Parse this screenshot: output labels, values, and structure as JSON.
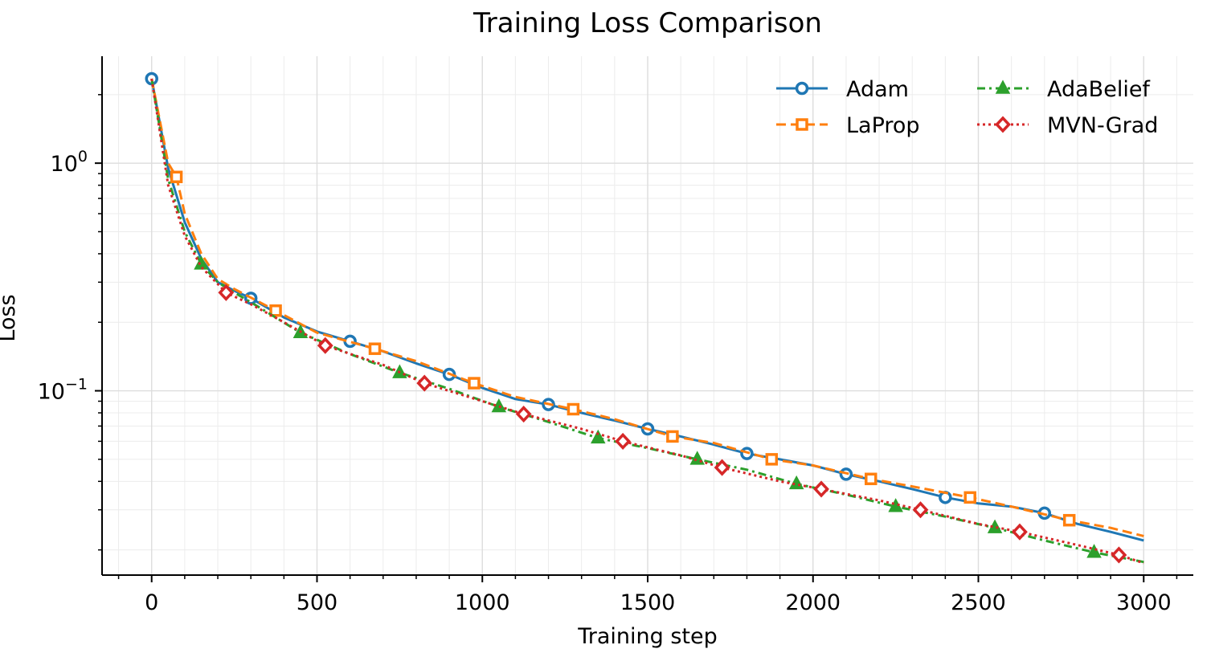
{
  "chart_data": {
    "type": "line",
    "title": "Training Loss Comparison",
    "xlabel": "Training step",
    "ylabel": "Loss",
    "yscale": "log",
    "xlim": [
      -150,
      3150
    ],
    "ylim": [
      0.0155,
      2.95
    ],
    "xticks": [
      0,
      500,
      1000,
      1500,
      2000,
      2500,
      3000
    ],
    "xtick_labels": [
      "0",
      "500",
      "1000",
      "1500",
      "2000",
      "2500",
      "3000"
    ],
    "yticks": [
      {
        "value": 1,
        "base": "10",
        "exponent": "0"
      },
      {
        "value": 0.1,
        "base": "10",
        "exponent": "−1"
      }
    ],
    "grid": true,
    "legend_location": "top-right",
    "legend_columns": 2,
    "series": [
      {
        "name": "Adam",
        "color": "#1f77b4",
        "line_style": "solid",
        "marker": "circle",
        "x": [
          0,
          50,
          100,
          150,
          200,
          250,
          300,
          400,
          500,
          600,
          700,
          800,
          900,
          1000,
          1100,
          1200,
          1300,
          1400,
          1500,
          1600,
          1700,
          1800,
          1900,
          2000,
          2100,
          2200,
          2300,
          2400,
          2500,
          2600,
          2700,
          2800,
          2900,
          3000
        ],
        "values": [
          2.35,
          0.95,
          0.55,
          0.38,
          0.3,
          0.275,
          0.255,
          0.21,
          0.182,
          0.165,
          0.149,
          0.132,
          0.118,
          0.103,
          0.092,
          0.087,
          0.08,
          0.074,
          0.068,
          0.063,
          0.058,
          0.053,
          0.05,
          0.047,
          0.043,
          0.04,
          0.037,
          0.034,
          0.032,
          0.031,
          0.029,
          0.026,
          0.024,
          0.022
        ],
        "marker_x": [
          0,
          300,
          600,
          900,
          1200,
          1500,
          1800,
          2100,
          2400,
          2700
        ]
      },
      {
        "name": "LaProp",
        "color": "#ff7f0e",
        "line_style": "dashed",
        "marker": "square",
        "x": [
          0,
          50,
          75,
          100,
          150,
          200,
          250,
          375,
          500,
          675,
          800,
          975,
          1100,
          1275,
          1400,
          1575,
          1700,
          1875,
          2000,
          2175,
          2300,
          2475,
          2600,
          2775,
          2900,
          3000
        ],
        "values": [
          2.35,
          1.0,
          0.87,
          0.6,
          0.4,
          0.31,
          0.28,
          0.225,
          0.18,
          0.153,
          0.135,
          0.108,
          0.094,
          0.083,
          0.075,
          0.063,
          0.059,
          0.05,
          0.047,
          0.041,
          0.038,
          0.034,
          0.031,
          0.027,
          0.025,
          0.023
        ],
        "marker_x": [
          75,
          375,
          675,
          975,
          1275,
          1575,
          1875,
          2175,
          2475,
          2775
        ]
      },
      {
        "name": "AdaBelief",
        "color": "#2ca02c",
        "line_style": "dashdot",
        "marker": "triangle",
        "x": [
          0,
          50,
          100,
          150,
          200,
          250,
          300,
          450,
          600,
          750,
          900,
          1050,
          1200,
          1350,
          1500,
          1650,
          1800,
          1950,
          2100,
          2250,
          2400,
          2550,
          2700,
          2850,
          3000
        ],
        "values": [
          2.35,
          0.85,
          0.5,
          0.36,
          0.3,
          0.27,
          0.245,
          0.18,
          0.145,
          0.12,
          0.102,
          0.085,
          0.073,
          0.062,
          0.056,
          0.05,
          0.045,
          0.039,
          0.035,
          0.031,
          0.028,
          0.025,
          0.022,
          0.0195,
          0.0177
        ],
        "marker_x": [
          150,
          450,
          750,
          1050,
          1350,
          1650,
          1950,
          2250,
          2550,
          2850
        ]
      },
      {
        "name": "MVN-Grad",
        "color": "#d62728",
        "line_style": "dotted",
        "marker": "diamond",
        "x": [
          0,
          50,
          100,
          150,
          225,
          300,
          400,
          525,
          700,
          825,
          1000,
          1125,
          1300,
          1425,
          1600,
          1725,
          1900,
          2025,
          2200,
          2325,
          2500,
          2625,
          2800,
          2925,
          3000
        ],
        "values": [
          2.35,
          0.8,
          0.48,
          0.35,
          0.27,
          0.24,
          0.2,
          0.158,
          0.13,
          0.108,
          0.09,
          0.079,
          0.068,
          0.06,
          0.052,
          0.046,
          0.04,
          0.037,
          0.033,
          0.03,
          0.026,
          0.024,
          0.021,
          0.019,
          0.0175
        ],
        "marker_x": [
          225,
          525,
          825,
          1125,
          1425,
          1725,
          2025,
          2325,
          2625,
          2925
        ]
      }
    ]
  }
}
